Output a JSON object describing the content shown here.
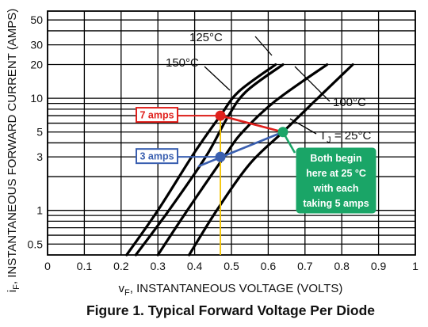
{
  "chart_data": {
    "type": "line",
    "title": "Figure 1. Typical Forward Voltage Per Diode",
    "xlabel_sym": "v",
    "xlabel_sub": "F",
    "xlabel_rest": ", INSTANTANEOUS VOLTAGE (VOLTS)",
    "ylabel_sym": "i",
    "ylabel_sub": "F",
    "ylabel_rest": ", INSTANTANEOUS FORWARD CURRENT (AMPS)",
    "xlim": [
      0,
      1.0
    ],
    "ylim": [
      0.4,
      60
    ],
    "yscale": "log",
    "grid": true,
    "x_ticks": [
      0,
      0.1,
      0.2,
      0.3,
      0.4,
      0.5,
      0.6,
      0.7,
      0.8,
      0.9,
      1
    ],
    "x_tick_labels": [
      "0",
      "0.1",
      "0.2",
      "0.3",
      "0.4",
      "0.5",
      "0.6",
      "0.7",
      "0.8",
      "0.9",
      "1"
    ],
    "y_ticks": [
      0.5,
      1,
      3,
      5,
      10,
      20,
      30,
      50
    ],
    "y_tick_labels": [
      "0.5",
      "1",
      "3",
      "5",
      "10",
      "20",
      "30",
      "50"
    ],
    "y_minor_grid": [
      0.5,
      0.6,
      0.7,
      0.8,
      0.9,
      1,
      2,
      3,
      4,
      5,
      6,
      7,
      8,
      9,
      10,
      20,
      30,
      40,
      50
    ],
    "series": [
      {
        "name": "150°C",
        "points": [
          [
            0.215,
            0.4
          ],
          [
            0.3,
            1.0
          ],
          [
            0.4,
            3.3
          ],
          [
            0.47,
            7.0
          ],
          [
            0.52,
            11.5
          ],
          [
            0.62,
            20
          ]
        ]
      },
      {
        "name": "125°C",
        "points": [
          [
            0.24,
            0.4
          ],
          [
            0.33,
            1.0
          ],
          [
            0.43,
            3.0
          ],
          [
            0.49,
            6.8
          ],
          [
            0.54,
            11.5
          ],
          [
            0.64,
            20
          ]
        ]
      },
      {
        "name": "100°C",
        "points": [
          [
            0.3,
            0.4
          ],
          [
            0.38,
            1.0
          ],
          [
            0.48,
            3.0
          ],
          [
            0.53,
            5.0
          ],
          [
            0.62,
            9.5
          ],
          [
            0.76,
            20
          ]
        ]
      },
      {
        "name": "T J = 25°C",
        "points": [
          [
            0.385,
            0.4
          ],
          [
            0.46,
            1.0
          ],
          [
            0.55,
            2.6
          ],
          [
            0.64,
            5.0
          ],
          [
            0.72,
            9.0
          ],
          [
            0.83,
            20
          ]
        ]
      }
    ],
    "curve_labels": [
      {
        "text": "125°C",
        "curve": "125°C"
      },
      {
        "text": "150°C",
        "curve": "150°C"
      },
      {
        "text": "100°C",
        "curve": "100°C"
      },
      {
        "text_main": "T",
        "text_sub": "J",
        "text_rest": " = 25°C",
        "curve": "T J = 25°C"
      }
    ],
    "annotations": [
      {
        "label": "7 amps",
        "color": "#e0201c",
        "x": 0.47,
        "y": 7,
        "label_anchor_data": [
          0.29,
          7
        ]
      },
      {
        "label": "3 amps",
        "color": "#3a5fb0",
        "x": 0.47,
        "y": 3,
        "label_anchor_data": [
          0.29,
          3
        ]
      },
      {
        "note": [
          "Both begin",
          "here at 25 °C",
          "with each",
          "taking 5 amps"
        ],
        "color": "#1aa567",
        "x": 0.64,
        "y": 5
      }
    ],
    "vertical_marker": {
      "x": 0.47,
      "color": "#f5c400"
    },
    "colors": {
      "curve": "#000000",
      "grid": "#000000",
      "red": "#e0201c",
      "blue": "#3a5fb0",
      "green": "#1aa567",
      "yellow": "#f5c400"
    }
  }
}
